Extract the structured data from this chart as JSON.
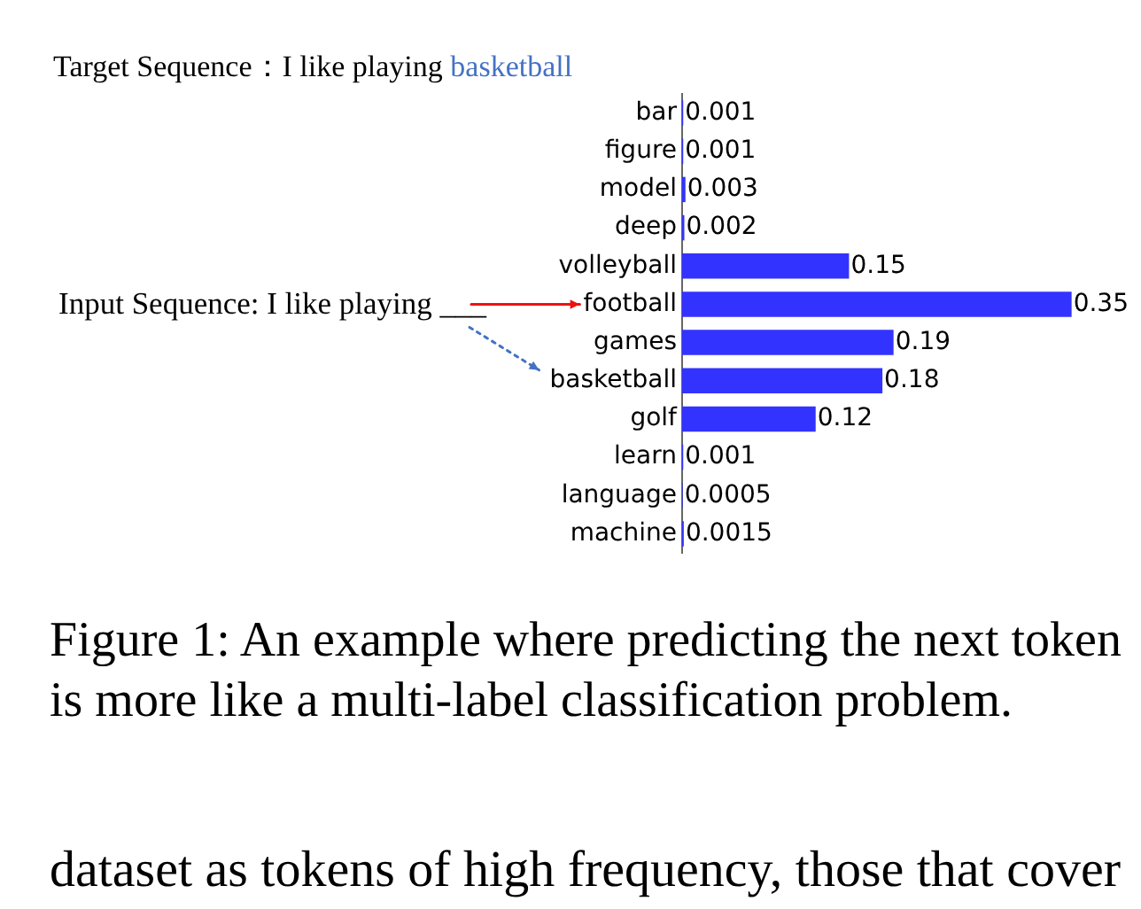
{
  "chart_data": {
    "type": "bar",
    "orientation": "horizontal",
    "title": "Target Sequence：I like playing basketball",
    "categories": [
      "bar",
      "figure",
      "model",
      "deep",
      "volleyball",
      "football",
      "games",
      "basketball",
      "golf",
      "learn",
      "language",
      "machine"
    ],
    "values": [
      0.001,
      0.001,
      0.003,
      0.002,
      0.15,
      0.35,
      0.19,
      0.18,
      0.12,
      0.001,
      0.0005,
      0.0015
    ],
    "color": "#3333ff",
    "data_labels": true,
    "annotations": [
      "Input Sequence: I like playing ___",
      "Figure 1: An example where predicting the next token is more like a multi-label classification problem.",
      "dataset as tokens of high frequency, those that cover"
    ]
  }
}
